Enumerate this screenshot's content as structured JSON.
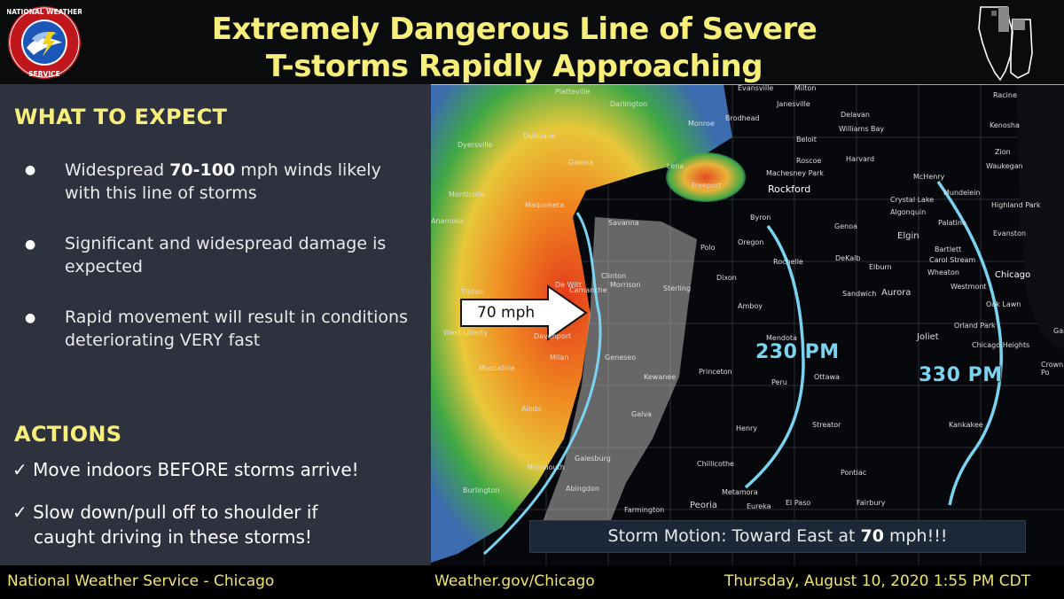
{
  "header": {
    "title_line1": "Extremely Dangerous Line of Severe",
    "title_line2": "T-storms Rapidly Approaching",
    "logo_text": "NATIONAL WEATHER SERVICE"
  },
  "expect": {
    "heading": "WHAT TO EXPECT",
    "bullets": [
      {
        "pre": "Widespread ",
        "bold": "70-100",
        "post": " mph winds likely with this line of storms"
      },
      {
        "pre": "Significant and widespread damage is expected",
        "bold": "",
        "post": ""
      },
      {
        "pre": "Rapid movement will result in conditions deteriorating VERY fast",
        "bold": "",
        "post": ""
      }
    ],
    "bullet_glyph": "●"
  },
  "actions": {
    "heading": "ACTIONS",
    "items": [
      {
        "check": "✓",
        "text": "Move indoors BEFORE storms arrive!"
      },
      {
        "check": "✓",
        "text": "Slow down/pull off to shoulder if",
        "text2": "caught  driving in these storms!"
      }
    ]
  },
  "map": {
    "arrow_label": "70 mph",
    "time1": "230 PM",
    "time2": "330 PM",
    "cities": [
      "Platteville",
      "Darlington",
      "Evansville",
      "Milton",
      "Racine",
      "Janesville",
      "Delavan",
      "Kenosha",
      "Brodhead",
      "Williams Bay",
      "Monroe",
      "Dyersville",
      "Dubuque",
      "Beloit",
      "Zion",
      "Galena",
      "Roscoe",
      "Harvard",
      "Waukegan",
      "Machesney Park",
      "McHenry",
      "Lena",
      "Freeport",
      "Rockford",
      "Mundelein",
      "Highland Park",
      "Crystal Lake",
      "Monticello",
      "Maquoketa",
      "Algonquin",
      "Anamosa",
      "Byron",
      "Genoa",
      "Palatine",
      "Savanna",
      "Oregon",
      "Evanston",
      "Elgin",
      "Bartlett",
      "Polo",
      "Carol Stream",
      "Chicago",
      "Rochelle",
      "DeKalb",
      "Elburn",
      "Wheaton",
      "Westmont",
      "Clinton",
      "De Witt",
      "Morrison",
      "Tipton",
      "Camanche",
      "Sterling",
      "Dixon",
      "Aurora",
      "Oak Lawn",
      "Amboy",
      "Sandwich",
      "Orland Park",
      "West Liberty",
      "Davenport",
      "Joliet",
      "Chicago Heights",
      "Mendota",
      "Gar",
      "Muscatine",
      "Milan",
      "Geneseo",
      "Princeton",
      "Peru",
      "Ottawa",
      "Crown Po",
      "Kewanee",
      "Galva",
      "Kankakee",
      "Henry",
      "Streator",
      "Monmouth",
      "Galesburg",
      "Chillicothe",
      "Pontiac",
      "Burlington",
      "Abingdon",
      "Metamora",
      "Peoria",
      "Eureka",
      "El Paso",
      "Fairbury",
      "Farmington",
      "Aledo"
    ],
    "motion_pre": "Storm Motion: Toward East at ",
    "motion_bold": "70",
    "motion_post": " mph!!!"
  },
  "footer": {
    "left": "National Weather Service - Chicago",
    "center": "Weather.gov/Chicago",
    "right": "Thursday, August 10, 2020 1:55 PM CDT"
  },
  "colors": {
    "title_yellow": "#f7ef7a",
    "panel_bg": "#2e323e",
    "time_blue": "#7ad3f0",
    "footer_yellow": "#f0e46a"
  }
}
